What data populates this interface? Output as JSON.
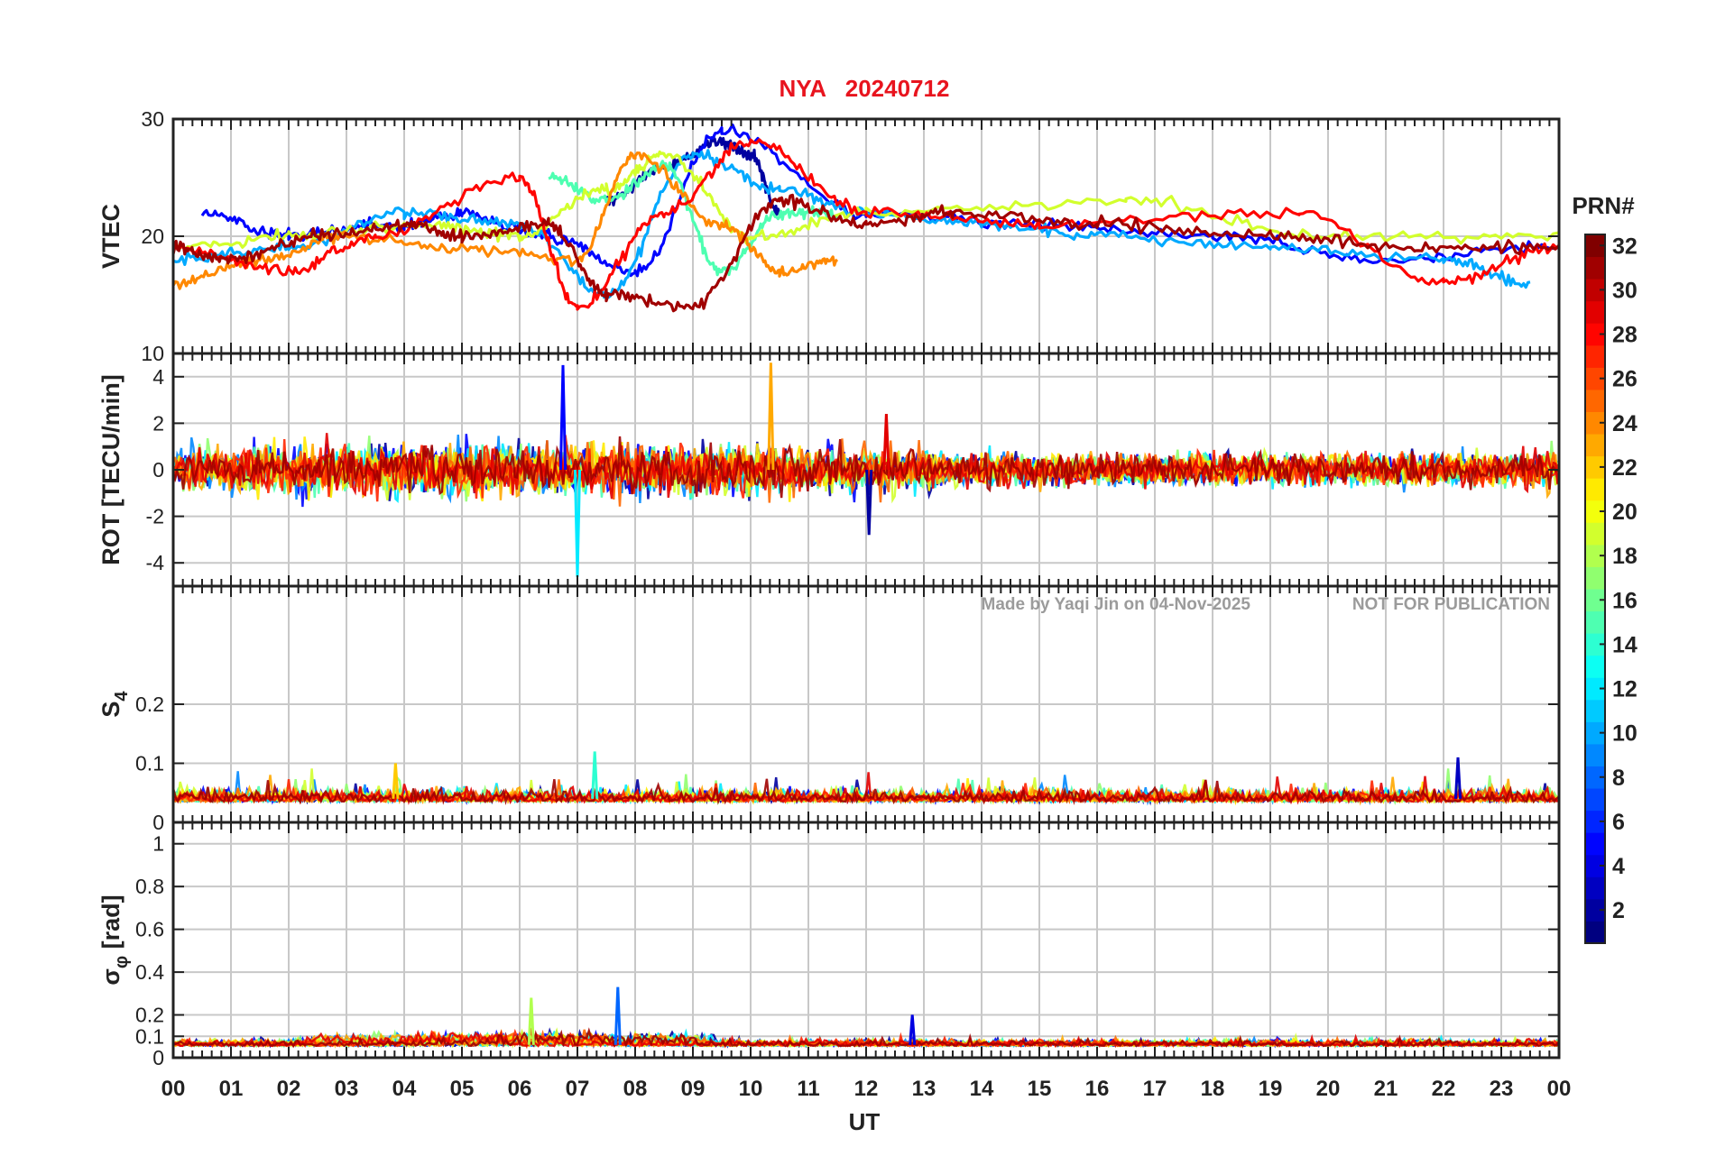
{
  "title": "NYA   20240712",
  "watermark": {
    "made_by": "Made by Yaqi Jin on 04-Nov-2025",
    "notice": "NOT FOR PUBLICATION"
  },
  "colors": {
    "title": "#e8141e",
    "grid": "#c8c8c8",
    "axis": "#222222",
    "watermark": "#8a8a8a",
    "colormap": "jet"
  },
  "chart_data": [
    {
      "type": "line",
      "panel": "VTEC",
      "ylabel": "VTEC",
      "ylim": [
        10,
        30
      ],
      "yticks": [
        10,
        20,
        30
      ],
      "x_unit": "UT hours",
      "xlim": [
        0,
        24
      ],
      "grid": true,
      "series_note": "one line per GPS PRN 1-32, coloured by PRN",
      "series": [
        {
          "prn": 2,
          "x": [
            7.5,
            8.5,
            9.5,
            10.0,
            10.5
          ],
          "y": [
            23,
            26,
            28,
            27,
            22
          ]
        },
        {
          "prn": 5,
          "x": [
            0.5,
            2,
            4,
            5,
            6.5,
            8,
            9.5,
            12,
            15,
            18,
            21,
            24
          ],
          "y": [
            22,
            20,
            21,
            22,
            20,
            17,
            29,
            22,
            21,
            20,
            18,
            19
          ]
        },
        {
          "prn": 10,
          "x": [
            0,
            2,
            4,
            6,
            7.5,
            9,
            10.5,
            12,
            14,
            16,
            19,
            22,
            23.5
          ],
          "y": [
            18,
            19,
            22,
            21,
            15,
            27,
            24,
            22,
            21,
            20,
            19,
            18,
            16
          ]
        },
        {
          "prn": 15,
          "x": [
            6.5,
            7.5,
            8.5,
            9.5,
            10.5,
            11.5
          ],
          "y": [
            25,
            23,
            26,
            17,
            22,
            22
          ]
        },
        {
          "prn": 19,
          "x": [
            0,
            2,
            4.5,
            6,
            7.5,
            8.5,
            10,
            12,
            16.5,
            20,
            24
          ],
          "y": [
            19,
            20,
            21,
            20,
            24,
            27,
            20,
            22,
            23,
            20,
            20
          ]
        },
        {
          "prn": 24,
          "x": [
            0,
            1.5,
            3,
            5,
            7,
            8,
            9.5,
            10.5,
            11.5
          ],
          "y": [
            16,
            18,
            20,
            19,
            18,
            27,
            21,
            17,
            18
          ]
        },
        {
          "prn": 28,
          "x": [
            0,
            2,
            3.5,
            6,
            7,
            8.5,
            10,
            12,
            15,
            19.5,
            22,
            24
          ],
          "y": [
            19,
            17,
            20,
            25,
            14,
            22,
            28,
            22,
            21,
            22,
            16,
            19
          ]
        },
        {
          "prn": 31,
          "x": [
            0,
            1,
            2.5,
            4,
            5,
            6.5,
            7.5,
            9,
            10.5,
            12,
            13.5,
            16,
            19,
            21.5,
            24
          ],
          "y": [
            19,
            18,
            20,
            21,
            20,
            21,
            15,
            14,
            23,
            21,
            22,
            21,
            20,
            19,
            19
          ]
        }
      ]
    },
    {
      "type": "line",
      "panel": "ROT",
      "ylabel": "ROT [TECU/min]",
      "ylim": [
        -5,
        5
      ],
      "yticks": [
        -4,
        -2,
        0,
        2,
        4
      ],
      "x_unit": "UT hours",
      "xlim": [
        0,
        24
      ],
      "grid": true,
      "spikes": [
        {
          "prn": 5,
          "x": 6.75,
          "y": 4.5
        },
        {
          "prn": 12,
          "x": 7.0,
          "y": -4.6
        },
        {
          "prn": 23,
          "x": 10.35,
          "y": 4.6
        },
        {
          "prn": 2,
          "x": 12.05,
          "y": -2.8
        },
        {
          "prn": 29,
          "x": 12.35,
          "y": 2.4
        }
      ]
    },
    {
      "type": "line",
      "panel": "S4",
      "ylabel": "S",
      "ylabel_sub": "4",
      "ylim": [
        0,
        0.4
      ],
      "yticks": [
        0,
        0.1,
        0.2
      ],
      "ytick_labels": [
        "0",
        "0.1",
        "0.2"
      ],
      "x_unit": "UT hours",
      "xlim": [
        0,
        24
      ],
      "grid": true,
      "typical_range": [
        0.02,
        0.1
      ],
      "peaks": [
        {
          "prn": 14,
          "x": 7.3,
          "y": 0.12
        },
        {
          "prn": 3,
          "x": 22.25,
          "y": 0.11
        },
        {
          "prn": 22,
          "x": 3.85,
          "y": 0.1
        }
      ]
    },
    {
      "type": "line",
      "panel": "sigma_phi",
      "ylabel": "σ",
      "ylabel_sub": "φ",
      "ylabel_unit": " [rad]",
      "ylim": [
        0,
        1.1
      ],
      "yticks": [
        0,
        0.1,
        0.2,
        0.4,
        0.6,
        0.8,
        1
      ],
      "ytick_labels": [
        "0",
        "0.1",
        "0.2",
        "0.4",
        "0.6",
        "0.8",
        "1"
      ],
      "x_unit": "UT hours",
      "xlim": [
        0,
        24
      ],
      "grid": true,
      "typical_range": [
        0.02,
        0.15
      ],
      "peaks": [
        {
          "prn": 8,
          "x": 7.7,
          "y": 0.33
        },
        {
          "prn": 18,
          "x": 6.2,
          "y": 0.28
        },
        {
          "prn": 4,
          "x": 12.8,
          "y": 0.2
        }
      ]
    }
  ],
  "xaxis": {
    "label": "UT",
    "ticks": [
      "00",
      "01",
      "02",
      "03",
      "04",
      "05",
      "06",
      "07",
      "08",
      "09",
      "10",
      "11",
      "12",
      "13",
      "14",
      "15",
      "16",
      "17",
      "18",
      "19",
      "20",
      "21",
      "22",
      "23",
      "00"
    ]
  },
  "colorbar": {
    "title": "PRN#",
    "range": [
      1,
      32
    ],
    "ticks": [
      "2",
      "4",
      "6",
      "8",
      "10",
      "12",
      "14",
      "16",
      "18",
      "20",
      "22",
      "24",
      "26",
      "28",
      "30",
      "32"
    ]
  }
}
